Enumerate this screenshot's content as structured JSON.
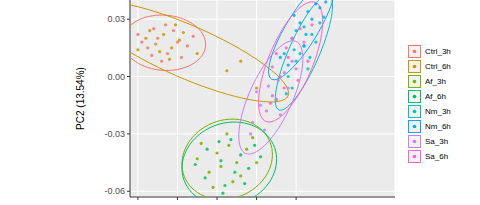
{
  "chart_data": {
    "type": "scatter",
    "y_label": "PC2 (13.54%)",
    "xlim": [
      -0.044,
      0.09
    ],
    "xticks": [
      -0.04,
      -0.02,
      0,
      0.02,
      0.04
    ],
    "ylim": [
      -0.063,
      0.04
    ],
    "yticks": [
      {
        "value": -0.06,
        "label": "-0.06"
      },
      {
        "value": -0.03,
        "label": "-0.03"
      },
      {
        "value": 0,
        "label": "0.00"
      },
      {
        "value": 0.03,
        "label": "0.03"
      }
    ],
    "grid": true,
    "tick_labels": "y",
    "legend": "right",
    "series": [
      {
        "name": "Ctrl_3h",
        "color": "#F8766D",
        "x": [
          -0.04,
          -0.035,
          -0.03,
          -0.025,
          -0.02,
          -0.032,
          -0.018,
          -0.028,
          -0.038,
          -0.022,
          -0.015,
          -0.033,
          -0.026,
          -0.012
        ],
        "y": [
          0.022,
          0.015,
          0.02,
          0.012,
          0.018,
          0.025,
          0.01,
          0.008,
          0.018,
          0.024,
          0.016,
          0.011,
          0.027,
          0.021
        ]
      },
      {
        "name": "Ctrl_6h",
        "color": "#CD9600",
        "x": [
          -0.036,
          -0.031,
          -0.027,
          -0.023,
          -0.029,
          -0.034,
          -0.019,
          -0.024,
          -0.04,
          -0.017,
          -0.01,
          0.005,
          0.02,
          0.03,
          -0.021,
          0.012
        ],
        "y": [
          0.02,
          0.017,
          0.022,
          0.015,
          0.013,
          0.024,
          0.019,
          0.009,
          0.014,
          0.023,
          0.012,
          0.003,
          -0.006,
          -0.012,
          0.027,
          0.008
        ]
      },
      {
        "name": "Af_3h",
        "color": "#7CAE00",
        "x": [
          -0.008,
          0.0,
          0.005,
          0.01,
          0.015,
          -0.004,
          0.008,
          0.002,
          0.018,
          -0.01,
          0.012,
          0.006,
          0.02,
          -0.002
        ],
        "y": [
          -0.035,
          -0.04,
          -0.03,
          -0.045,
          -0.038,
          -0.05,
          -0.055,
          -0.047,
          -0.032,
          -0.043,
          -0.052,
          -0.036,
          -0.045,
          -0.058
        ]
      },
      {
        "name": "Af_6h",
        "color": "#00BE67",
        "x": [
          -0.005,
          0.002,
          0.007,
          0.012,
          0.016,
          -0.006,
          0.004,
          0.009,
          0.019,
          -0.011,
          0.014,
          0.001,
          0.022,
          0.003
        ],
        "y": [
          -0.038,
          -0.044,
          -0.033,
          -0.041,
          -0.048,
          -0.053,
          -0.057,
          -0.05,
          -0.036,
          -0.046,
          -0.056,
          -0.034,
          -0.042,
          -0.061
        ]
      },
      {
        "name": "Nm_3h",
        "color": "#00BFC4",
        "x": [
          0.036,
          0.04,
          0.044,
          0.048,
          0.052,
          0.038,
          0.042,
          0.046,
          0.05,
          0.044,
          0.054,
          0.039,
          0.047,
          0.035
        ],
        "y": [
          0.0,
          0.008,
          0.016,
          0.022,
          0.028,
          -0.006,
          0.012,
          0.004,
          0.018,
          0.026,
          0.031,
          0.014,
          0.01,
          -0.009
        ]
      },
      {
        "name": "Nm_6h",
        "color": "#00A9FF",
        "x": [
          0.034,
          0.038,
          0.042,
          0.046,
          0.05,
          0.036,
          0.04,
          0.044,
          0.048,
          0.052,
          0.055,
          0.039,
          0.045,
          0.032
        ],
        "y": [
          0.012,
          0.02,
          0.028,
          0.034,
          0.038,
          0.006,
          0.024,
          0.016,
          0.03,
          0.036,
          0.039,
          0.032,
          0.022,
          0.01
        ]
      },
      {
        "name": "Sa_3h",
        "color": "#C77CFF",
        "x": [
          0.018,
          0.022,
          0.026,
          0.03,
          0.034,
          0.024,
          0.02,
          0.032,
          0.036,
          0.028,
          0.038,
          0.025,
          0.017,
          0.031
        ],
        "y": [
          -0.024,
          -0.015,
          -0.005,
          -0.012,
          0.002,
          -0.028,
          -0.008,
          -0.02,
          -0.006,
          0.005,
          0.008,
          -0.018,
          -0.03,
          -0.002
        ]
      },
      {
        "name": "Sa_6h",
        "color": "#FF61CC",
        "x": [
          0.028,
          0.032,
          0.036,
          0.04,
          0.044,
          0.034,
          0.03,
          0.042,
          0.046,
          0.038,
          0.048,
          0.035,
          0.027,
          0.041
        ],
        "y": [
          -0.01,
          0.0,
          0.01,
          0.004,
          0.018,
          -0.006,
          0.012,
          0.025,
          0.008,
          0.02,
          0.027,
          0.015,
          -0.014,
          -0.002
        ]
      }
    ]
  }
}
